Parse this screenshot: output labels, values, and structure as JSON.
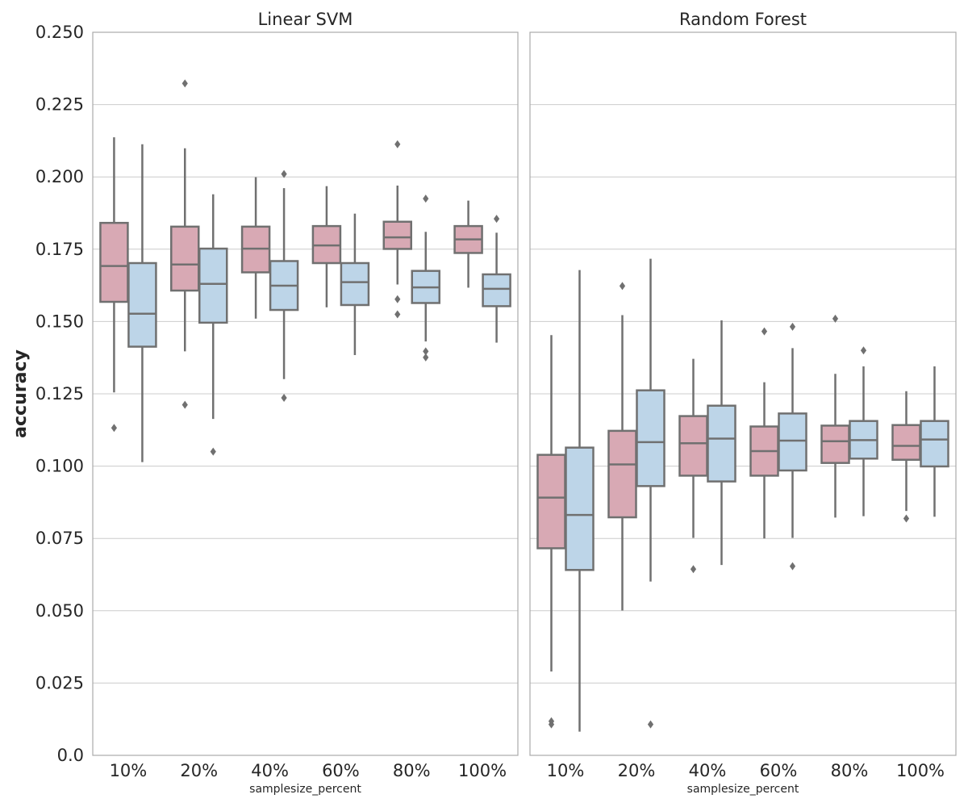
{
  "chart_data": {
    "type": "box",
    "ylabel": "accuracy",
    "xlabel": "samplesize_percent",
    "ylim": [
      0.0,
      0.25
    ],
    "yticks": [
      "0.0",
      "0.025",
      "0.050",
      "0.075",
      "0.100",
      "0.125",
      "0.150",
      "0.175",
      "0.200",
      "0.225",
      "0.250"
    ],
    "yticks_values": [
      0.0,
      0.025,
      0.05,
      0.075,
      0.1,
      0.125,
      0.15,
      0.175,
      0.2,
      0.225,
      0.25
    ],
    "categories": [
      "10%",
      "20%",
      "40%",
      "60%",
      "80%",
      "100%"
    ],
    "grid": true,
    "colors": [
      "#d8a9b4",
      "#bdd5e8"
    ],
    "panels": [
      {
        "title": "Linear SVM",
        "groups": [
          {
            "category": "10%",
            "boxes": [
              {
                "min": 0.1255,
                "q1": 0.1568,
                "median": 0.1692,
                "q3": 0.1841,
                "max": 0.2137,
                "outliers": [
                  0.1132
                ]
              },
              {
                "min": 0.1014,
                "q1": 0.1413,
                "median": 0.1527,
                "q3": 0.1702,
                "max": 0.2113,
                "outliers": []
              }
            ]
          },
          {
            "category": "20%",
            "boxes": [
              {
                "min": 0.1397,
                "q1": 0.1607,
                "median": 0.1697,
                "q3": 0.1828,
                "max": 0.2099,
                "outliers": [
                  0.2323,
                  0.1212
                ]
              },
              {
                "min": 0.1163,
                "q1": 0.1496,
                "median": 0.163,
                "q3": 0.1752,
                "max": 0.194,
                "outliers": [
                  0.105
                ]
              }
            ]
          },
          {
            "category": "40%",
            "boxes": [
              {
                "min": 0.151,
                "q1": 0.167,
                "median": 0.1752,
                "q3": 0.1828,
                "max": 0.1999,
                "outliers": []
              },
              {
                "min": 0.1301,
                "q1": 0.154,
                "median": 0.1624,
                "q3": 0.1709,
                "max": 0.1961,
                "outliers": [
                  0.201,
                  0.1236
                ]
              }
            ]
          },
          {
            "category": "60%",
            "boxes": [
              {
                "min": 0.1549,
                "q1": 0.1702,
                "median": 0.1763,
                "q3": 0.183,
                "max": 0.1968,
                "outliers": []
              },
              {
                "min": 0.1384,
                "q1": 0.1557,
                "median": 0.1636,
                "q3": 0.1702,
                "max": 0.1873,
                "outliers": []
              }
            ]
          },
          {
            "category": "80%",
            "boxes": [
              {
                "min": 0.1628,
                "q1": 0.1751,
                "median": 0.1791,
                "q3": 0.1845,
                "max": 0.197,
                "outliers": [
                  0.2113,
                  0.1577,
                  0.1525
                ]
              },
              {
                "min": 0.1431,
                "q1": 0.1564,
                "median": 0.1618,
                "q3": 0.1675,
                "max": 0.181,
                "outliers": [
                  0.1925,
                  0.1397,
                  0.1376
                ]
              }
            ]
          },
          {
            "category": "100%",
            "boxes": [
              {
                "min": 0.1617,
                "q1": 0.1737,
                "median": 0.1784,
                "q3": 0.183,
                "max": 0.1918,
                "outliers": []
              },
              {
                "min": 0.1427,
                "q1": 0.1553,
                "median": 0.1613,
                "q3": 0.1663,
                "max": 0.1807,
                "outliers": [
                  0.1855
                ]
              }
            ]
          }
        ]
      },
      {
        "title": "Random Forest",
        "groups": [
          {
            "category": "10%",
            "boxes": [
              {
                "min": 0.029,
                "q1": 0.0716,
                "median": 0.0891,
                "q3": 0.1039,
                "max": 0.1453,
                "outliers": [
                  0.0118,
                  0.0107
                ]
              },
              {
                "min": 0.0082,
                "q1": 0.0641,
                "median": 0.0831,
                "q3": 0.1064,
                "max": 0.1678,
                "outliers": []
              }
            ]
          },
          {
            "category": "20%",
            "boxes": [
              {
                "min": 0.0501,
                "q1": 0.0823,
                "median": 0.1006,
                "q3": 0.1122,
                "max": 0.1522,
                "outliers": [
                  0.1623
                ]
              },
              {
                "min": 0.0601,
                "q1": 0.0931,
                "median": 0.1083,
                "q3": 0.1262,
                "max": 0.1717,
                "outliers": [
                  0.0107
                ]
              }
            ]
          },
          {
            "category": "40%",
            "boxes": [
              {
                "min": 0.0752,
                "q1": 0.0967,
                "median": 0.1079,
                "q3": 0.1173,
                "max": 0.1371,
                "outliers": [
                  0.0644
                ]
              },
              {
                "min": 0.0658,
                "q1": 0.0947,
                "median": 0.1095,
                "q3": 0.1209,
                "max": 0.1504,
                "outliers": []
              }
            ]
          },
          {
            "category": "60%",
            "boxes": [
              {
                "min": 0.075,
                "q1": 0.0967,
                "median": 0.1052,
                "q3": 0.1137,
                "max": 0.129,
                "outliers": [
                  0.1466
                ]
              },
              {
                "min": 0.0752,
                "q1": 0.0985,
                "median": 0.1088,
                "q3": 0.1182,
                "max": 0.1408,
                "outliers": [
                  0.1482,
                  0.0654
                ]
              }
            ]
          },
          {
            "category": "80%",
            "boxes": [
              {
                "min": 0.0822,
                "q1": 0.1011,
                "median": 0.1086,
                "q3": 0.114,
                "max": 0.1319,
                "outliers": [
                  0.151
                ]
              },
              {
                "min": 0.0827,
                "q1": 0.1026,
                "median": 0.109,
                "q3": 0.1156,
                "max": 0.1345,
                "outliers": [
                  0.14
                ]
              }
            ]
          },
          {
            "category": "100%",
            "boxes": [
              {
                "min": 0.0845,
                "q1": 0.1022,
                "median": 0.107,
                "q3": 0.1142,
                "max": 0.1259,
                "outliers": [
                  0.0819
                ]
              },
              {
                "min": 0.0825,
                "q1": 0.0999,
                "median": 0.1092,
                "q3": 0.1156,
                "max": 0.1345,
                "outliers": []
              }
            ]
          }
        ]
      }
    ]
  }
}
